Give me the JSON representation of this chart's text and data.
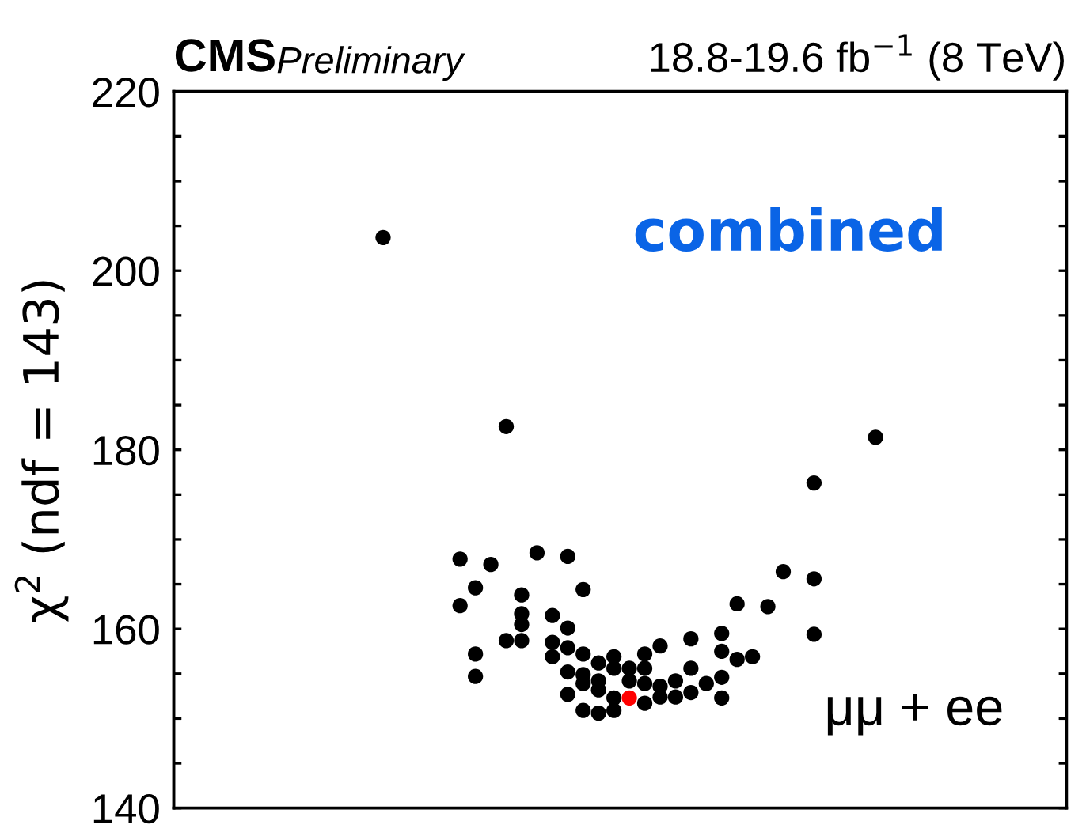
{
  "chart_data": {
    "type": "scatter",
    "title": "CMS",
    "subtitle": "Preliminary",
    "ylabel": "χ$^{2}$ (ndf = 143)",
    "annotations": [
      "18.8-19.6 fb$^{−1}$ (8 TeV)",
      "combined",
      "μμ + ee"
    ],
    "categories": [
      null,
      null,
      null,
      null,
      null,
      null,
      null,
      null,
      null,
      null,
      null,
      null,
      null,
      null,
      null,
      null,
      null,
      null,
      null,
      null,
      null,
      null,
      null,
      null,
      null,
      null,
      null,
      null,
      null,
      null,
      null,
      null,
      null,
      null,
      null,
      null,
      null,
      null,
      null,
      null,
      null,
      null,
      null,
      null,
      null,
      null,
      null,
      null,
      null,
      null,
      null,
      null,
      null,
      null,
      null,
      null,
      null,
      null
    ],
    "marker": "circle",
    "ylim": [
      140,
      220
    ],
    "yticks": [
      140,
      {
        "value": 145,
        "label": null
      },
      {
        "value": 150,
        "label": null
      },
      {
        "value": 155,
        "label": null
      },
      160,
      {
        "value": 165,
        "label": null
      },
      {
        "value": 170,
        "label": null
      },
      {
        "value": 175,
        "label": null
      },
      180,
      {
        "value": 185,
        "label": null
      },
      {
        "value": 190,
        "label": null
      },
      {
        "value": 195,
        "label": null
      },
      200,
      {
        "value": 205,
        "label": null
      },
      {
        "value": 210,
        "label": null
      },
      {
        "value": 215,
        "label": null
      },
      220
    ],
    "tick_labels": "y",
    "series": [
      {
        "color": "#000000",
        "values": [
          null,
          null,
          null,
          null,
          null,
          null,
          null,
          null,
          null,
          null,
          null,
          null,
          null,
          203.7,
          null,
          null,
          null,
          null,
          167.8,
          164.6,
          167.2,
          182.6,
          163.8,
          168.5,
          161.5,
          168.1,
          164.4,
          156.2,
          155.6,
          155.6,
          157.2,
          153.6,
          154.2,
          158.9,
          153.9,
          152.3,
          162.8,
          156.9,
          162.5,
          166.4,
          null,
          176.3,
          null,
          null,
          null,
          181.4,
          null,
          null,
          null,
          null,
          null,
          null,
          null,
          null,
          null,
          null,
          null,
          null
        ]
      },
      {
        "color": "#000000",
        "values": [
          null,
          null,
          null,
          null,
          null,
          null,
          null,
          null,
          null,
          null,
          null,
          null,
          null,
          null,
          null,
          null,
          null,
          null,
          162.6,
          157.2,
          null,
          158.7,
          161.7,
          null,
          158.5,
          160.1,
          157.2,
          154.2,
          156.9,
          154.2,
          155.6,
          152.4,
          null,
          155.6,
          null,
          154.6,
          156.6,
          null,
          null,
          null,
          null,
          165.6,
          null,
          null,
          null,
          null,
          null,
          null,
          null,
          null,
          null,
          null,
          null,
          null,
          null,
          null,
          null,
          null
        ]
      },
      {
        "color": "#000000",
        "values": [
          null,
          null,
          null,
          null,
          null,
          null,
          null,
          null,
          null,
          null,
          null,
          null,
          null,
          null,
          null,
          null,
          null,
          null,
          null,
          154.7,
          null,
          null,
          158.7,
          null,
          156.9,
          null,
          154.9,
          150.6,
          150.9,
          null,
          153.9,
          158.1,
          152.4,
          152.9,
          null,
          159.5,
          null,
          null,
          null,
          null,
          null,
          159.4,
          null,
          null,
          null,
          null,
          null,
          null,
          null,
          null,
          null,
          null,
          null,
          null,
          null,
          null,
          null,
          null
        ]
      },
      {
        "color": "#000000",
        "values": [
          null,
          null,
          null,
          null,
          null,
          null,
          null,
          null,
          null,
          null,
          null,
          null,
          null,
          null,
          null,
          null,
          null,
          null,
          null,
          null,
          null,
          null,
          160.5,
          null,
          null,
          157.9,
          153.9,
          153.2,
          152.3,
          null,
          null,
          null,
          null,
          null,
          null,
          157.5,
          null,
          null,
          null,
          null,
          null,
          null,
          null,
          null,
          null,
          null,
          null,
          null,
          null,
          null,
          null,
          null,
          null,
          null,
          null,
          null,
          null,
          null
        ]
      },
      {
        "color": "#000000",
        "values": [
          null,
          null,
          null,
          null,
          null,
          null,
          null,
          null,
          null,
          null,
          null,
          null,
          null,
          null,
          null,
          null,
          null,
          null,
          null,
          null,
          null,
          null,
          null,
          null,
          null,
          155.2,
          150.9,
          null,
          null,
          null,
          151.7,
          null,
          null,
          null,
          null,
          null,
          null,
          null,
          null,
          null,
          null,
          null,
          null,
          null,
          null,
          null,
          null,
          null,
          null,
          null,
          null,
          null,
          null,
          null,
          null,
          null,
          null,
          null
        ]
      },
      {
        "color": "#000000",
        "values": [
          null,
          null,
          null,
          null,
          null,
          null,
          null,
          null,
          null,
          null,
          null,
          null,
          null,
          null,
          null,
          null,
          null,
          null,
          null,
          null,
          null,
          null,
          null,
          null,
          null,
          152.7,
          null,
          null,
          null,
          null,
          null,
          null,
          null,
          null,
          null,
          null,
          null,
          null,
          null,
          null,
          null,
          null,
          null,
          null,
          null,
          null,
          null,
          null,
          null,
          null,
          null,
          null,
          null,
          null,
          null,
          null,
          null,
          null
        ]
      },
      {
        "color": "#ff0000",
        "values": [
          null,
          null,
          null,
          null,
          null,
          null,
          null,
          null,
          null,
          null,
          null,
          null,
          null,
          null,
          null,
          null,
          null,
          null,
          null,
          null,
          null,
          null,
          null,
          null,
          null,
          null,
          null,
          null,
          null,
          152.3,
          null,
          null,
          null,
          null,
          null,
          null,
          null,
          null,
          null,
          null,
          null,
          null,
          null,
          null,
          null,
          null,
          null,
          null,
          null,
          null,
          null,
          null,
          null,
          null,
          null,
          null,
          null,
          null
        ]
      }
    ]
  }
}
